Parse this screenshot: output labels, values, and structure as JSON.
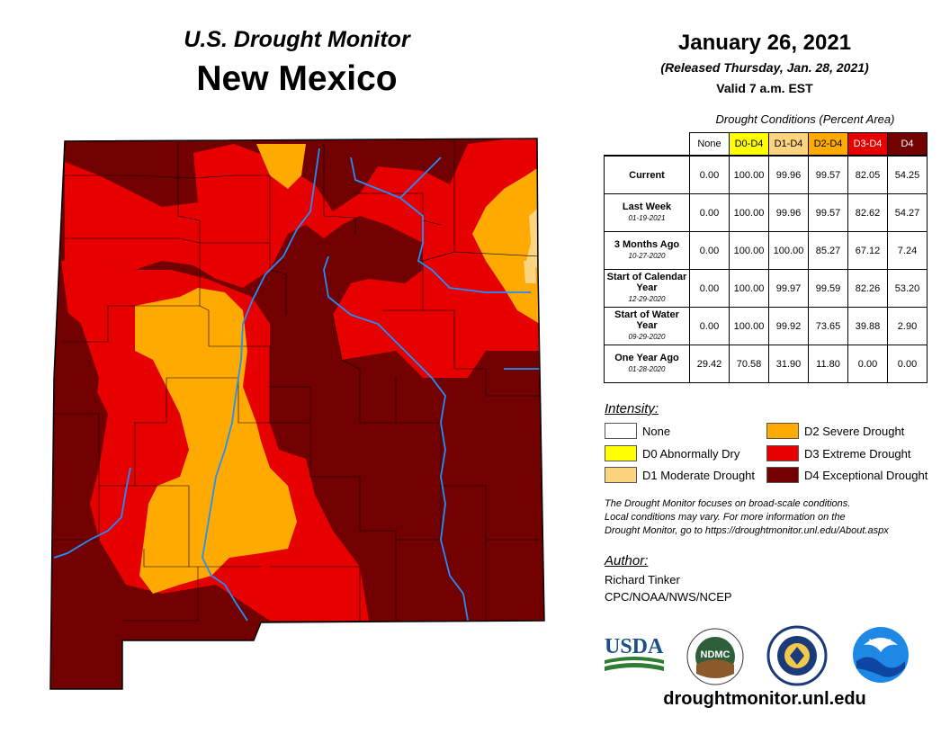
{
  "header": {
    "subtitle": "U.S. Drought Monitor",
    "state": "New Mexico",
    "date": "January 26, 2021",
    "released": "(Released Thursday, Jan. 28, 2021)",
    "valid": "Valid 7 a.m. EST"
  },
  "table": {
    "title": "Drought Conditions (Percent Area)",
    "columns": [
      {
        "label": "None",
        "color": "#ffffff",
        "text": "#000000"
      },
      {
        "label": "D0-D4",
        "color": "#ffff00",
        "text": "#000000"
      },
      {
        "label": "D1-D4",
        "color": "#fcd37f",
        "text": "#000000"
      },
      {
        "label": "D2-D4",
        "color": "#ffaa00",
        "text": "#000000"
      },
      {
        "label": "D3-D4",
        "color": "#e60000",
        "text": "#ffffff"
      },
      {
        "label": "D4",
        "color": "#730000",
        "text": "#ffffff"
      }
    ],
    "rows": [
      {
        "label": "Current",
        "date": "",
        "values": [
          "0.00",
          "100.00",
          "99.96",
          "99.57",
          "82.05",
          "54.25"
        ]
      },
      {
        "label": "Last Week",
        "date": "01-19-2021",
        "values": [
          "0.00",
          "100.00",
          "99.96",
          "99.57",
          "82.62",
          "54.27"
        ]
      },
      {
        "label": "3 Months Ago",
        "date": "10-27-2020",
        "values": [
          "0.00",
          "100.00",
          "100.00",
          "85.27",
          "67.12",
          "7.24"
        ]
      },
      {
        "label": "Start of Calendar Year",
        "date": "12-29-2020",
        "values": [
          "0.00",
          "100.00",
          "99.97",
          "99.59",
          "82.26",
          "53.20"
        ]
      },
      {
        "label": "Start of Water Year",
        "date": "09-29-2020",
        "values": [
          "0.00",
          "100.00",
          "99.92",
          "73.65",
          "39.88",
          "2.90"
        ]
      },
      {
        "label": "One Year Ago",
        "date": "01-28-2020",
        "values": [
          "29.42",
          "70.58",
          "31.90",
          "11.80",
          "0.00",
          "0.00"
        ]
      }
    ]
  },
  "legend": {
    "title": "Intensity:",
    "items": [
      {
        "label": "None",
        "color": "#ffffff"
      },
      {
        "label": "D0 Abnormally Dry",
        "color": "#ffff00"
      },
      {
        "label": "D1 Moderate Drought",
        "color": "#fcd37f"
      },
      {
        "label": "D2 Severe Drought",
        "color": "#ffaa00"
      },
      {
        "label": "D3 Extreme Drought",
        "color": "#e60000"
      },
      {
        "label": "D4 Exceptional Drought",
        "color": "#730000"
      }
    ]
  },
  "note": {
    "line1": "The Drought Monitor focuses on broad-scale conditions.",
    "line2": "Local conditions may vary. For more information on the",
    "line3": "Drought Monitor, go to https://droughtmonitor.unl.edu/About.aspx"
  },
  "author": {
    "heading": "Author:",
    "name": "Richard Tinker",
    "org": "CPC/NOAA/NWS/NCEP"
  },
  "logos": {
    "usda": "USDA",
    "ndmc": "NDMC",
    "noaa": "NOAA"
  },
  "footer": {
    "site": "droughtmonitor.unl.edu"
  }
}
